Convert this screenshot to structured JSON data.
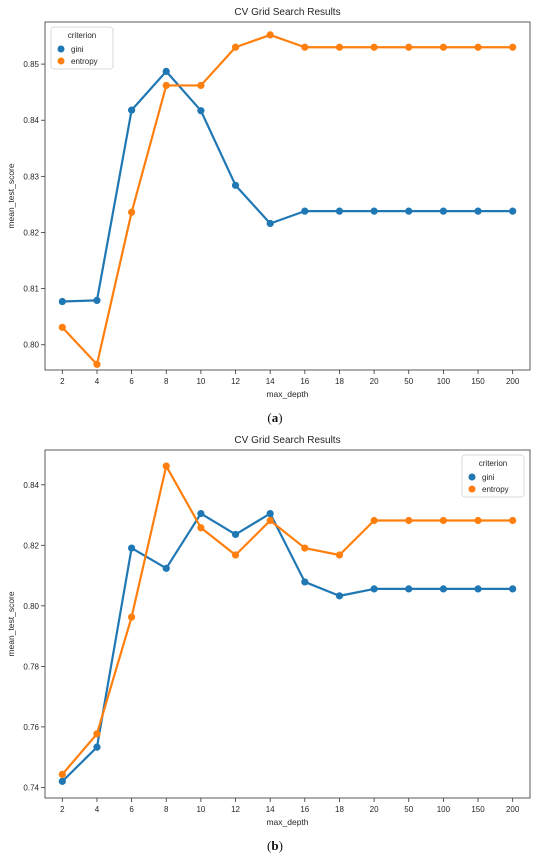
{
  "panels": [
    {
      "caption_open": "(",
      "caption_letter": "a",
      "caption_close": ")",
      "chart_data": {
        "type": "line",
        "title": "CV Grid Search Results",
        "xlabel": "max_depth",
        "ylabel": "mean_test_score",
        "categories": [
          "2",
          "4",
          "6",
          "8",
          "10",
          "12",
          "14",
          "16",
          "18",
          "20",
          "50",
          "100",
          "150",
          "200"
        ],
        "ylim": [
          0.7955,
          0.8575
        ],
        "yticks": [
          0.8,
          0.81,
          0.82,
          0.83,
          0.84,
          0.85
        ],
        "ytick_labels": [
          "0.80",
          "0.81",
          "0.82",
          "0.83",
          "0.84",
          "0.85"
        ],
        "grid": false,
        "legend": {
          "title": "criterion",
          "placement": "top-left"
        },
        "series": [
          {
            "name": "gini",
            "color": "#1f77b4",
            "values": [
              0.8077,
              0.8079,
              0.8418,
              0.8487,
              0.8417,
              0.8284,
              0.8216,
              0.8238,
              0.8238,
              0.8238,
              0.8238,
              0.8238,
              0.8238,
              0.8238
            ]
          },
          {
            "name": "entropy",
            "color": "#ff7f0e",
            "values": [
              0.8031,
              0.7965,
              0.8236,
              0.8462,
              0.8462,
              0.853,
              0.8552,
              0.853,
              0.853,
              0.853,
              0.853,
              0.853,
              0.853,
              0.853
            ]
          }
        ]
      }
    },
    {
      "caption_open": "(",
      "caption_letter": "b",
      "caption_close": ")",
      "chart_data": {
        "type": "line",
        "title": "CV Grid Search Results",
        "xlabel": "max_depth",
        "ylabel": "mean_test_score",
        "categories": [
          "2",
          "4",
          "6",
          "8",
          "10",
          "12",
          "14",
          "16",
          "18",
          "20",
          "50",
          "100",
          "150",
          "200"
        ],
        "ylim": [
          0.7365,
          0.8515
        ],
        "yticks": [
          0.74,
          0.76,
          0.78,
          0.8,
          0.82,
          0.84
        ],
        "ytick_labels": [
          "0.74",
          "0.76",
          "0.78",
          "0.80",
          "0.82",
          "0.84"
        ],
        "grid": false,
        "legend": {
          "title": "criterion",
          "placement": "top-right"
        },
        "series": [
          {
            "name": "gini",
            "color": "#1f77b4",
            "values": [
              0.742,
              0.7533,
              0.8191,
              0.8124,
              0.8305,
              0.8236,
              0.8305,
              0.8079,
              0.8033,
              0.8056,
              0.8056,
              0.8056,
              0.8056,
              0.8056
            ]
          },
          {
            "name": "entropy",
            "color": "#ff7f0e",
            "values": [
              0.7443,
              0.7577,
              0.7963,
              0.8462,
              0.8258,
              0.8168,
              0.8282,
              0.8191,
              0.8168,
              0.8282,
              0.8282,
              0.8282,
              0.8282,
              0.8282
            ]
          }
        ]
      }
    }
  ]
}
